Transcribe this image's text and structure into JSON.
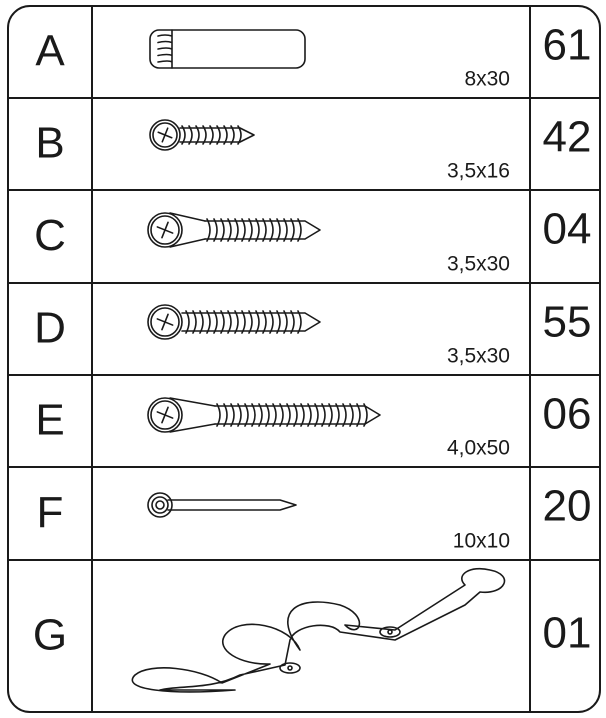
{
  "table": {
    "rows": [
      {
        "letter": "A",
        "size": "8x30",
        "count": "61"
      },
      {
        "letter": "B",
        "size": "3,5x16",
        "count": "42"
      },
      {
        "letter": "C",
        "size": "3,5x30",
        "count": "04"
      },
      {
        "letter": "D",
        "size": "3,5x30",
        "count": "55"
      },
      {
        "letter": "E",
        "size": "4,0x50",
        "count": "06"
      },
      {
        "letter": "F",
        "size": "10x10",
        "count": "20"
      },
      {
        "letter": "G",
        "count": "01"
      }
    ]
  }
}
